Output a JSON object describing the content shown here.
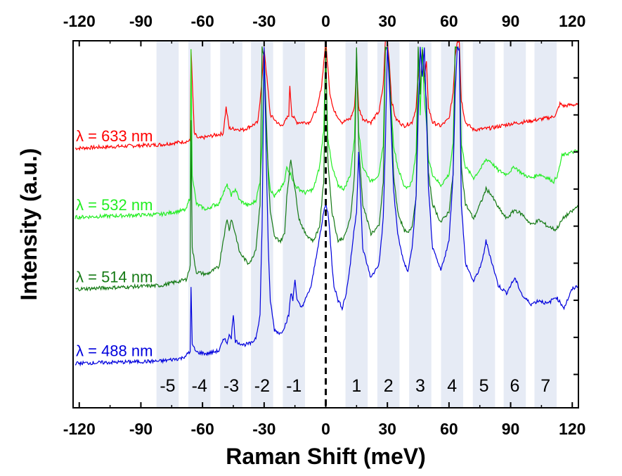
{
  "chart_data": {
    "type": "line",
    "xlabel": "Raman Shift (meV)",
    "ylabel": "Intensity (a.u.)",
    "xlim": [
      -123,
      123
    ],
    "xticks": [
      -120,
      -90,
      -60,
      -30,
      0,
      30,
      60,
      90,
      120
    ],
    "top_xticks": [
      -120,
      -90,
      -60,
      -30,
      0,
      30,
      60,
      90,
      120
    ],
    "zero_line": true,
    "shaded_bands": [
      {
        "label": "-5",
        "center": -77
      },
      {
        "label": "-4",
        "center": -61.5
      },
      {
        "label": "-3",
        "center": -46
      },
      {
        "label": "-2",
        "center": -31
      },
      {
        "label": "-1",
        "center": -15.5
      },
      {
        "label": "1",
        "center": 15
      },
      {
        "label": "2",
        "center": 30.5
      },
      {
        "label": "3",
        "center": 46
      },
      {
        "label": "4",
        "center": 61.5
      },
      {
        "label": "5",
        "center": 77
      },
      {
        "label": "6",
        "center": 92
      },
      {
        "label": "7",
        "center": 107
      }
    ],
    "series": [
      {
        "name": "λ = 633 nm",
        "color": "#ff0000",
        "baseline": 2.55,
        "x": [
          -122,
          -80,
          -66,
          -65.6,
          -64,
          -62,
          -50,
          -48.5,
          -47,
          -40,
          -33,
          -31,
          -30,
          -29,
          -27,
          -22,
          -20,
          -18,
          -17.5,
          -16.5,
          -14,
          -8,
          -4,
          -2,
          0,
          2,
          4,
          8,
          12,
          14,
          15,
          16,
          18,
          22,
          26,
          28,
          29,
          30,
          31,
          32,
          34,
          38,
          42,
          44,
          45,
          46,
          47,
          48,
          49,
          50,
          52,
          56,
          60,
          62,
          63,
          64,
          65,
          66,
          68,
          72,
          80,
          90,
          100,
          110,
          112,
          114,
          116,
          120,
          123
        ],
        "y": [
          2.55,
          2.6,
          2.65,
          3.9,
          2.75,
          2.68,
          2.75,
          3.1,
          2.82,
          2.8,
          2.9,
          3.5,
          3.9,
          3.6,
          3.0,
          2.85,
          2.9,
          3.0,
          3.4,
          3.0,
          2.9,
          2.9,
          3.1,
          3.4,
          4.0,
          3.3,
          3.05,
          2.9,
          2.95,
          3.1,
          3.7,
          3.1,
          2.95,
          2.9,
          3.05,
          3.4,
          4.0,
          4.0,
          3.7,
          3.2,
          2.95,
          2.85,
          2.9,
          3.1,
          3.6,
          3.3,
          3.9,
          3.5,
          3.7,
          3.1,
          2.9,
          2.85,
          2.95,
          3.3,
          3.8,
          4.0,
          4.0,
          3.2,
          2.9,
          2.8,
          2.82,
          2.88,
          2.92,
          2.97,
          3.0,
          3.15,
          3.12,
          3.14,
          3.13
        ]
      },
      {
        "name": "λ = 532 nm",
        "color": "#22ee22",
        "baseline": 1.62,
        "x": [
          -122,
          -80,
          -68,
          -66,
          -65.6,
          -65,
          -63,
          -58,
          -55,
          -52,
          -50,
          -48,
          -46,
          -44,
          -42,
          -38,
          -36,
          -34,
          -32,
          -31,
          -30,
          -29,
          -28,
          -27,
          -25,
          -22,
          -20,
          -19,
          -17,
          -15,
          -13,
          -10,
          -6,
          -3,
          -1,
          0,
          1,
          3,
          6,
          9,
          12,
          14,
          15,
          16,
          18,
          22,
          26,
          28,
          29,
          30,
          31,
          33,
          35,
          38,
          40,
          42,
          44,
          45,
          46,
          47,
          48,
          49,
          50,
          52,
          56,
          60,
          62,
          63,
          64,
          65,
          66,
          68,
          72,
          76,
          78,
          80,
          84,
          88,
          92,
          96,
          100,
          104,
          108,
          111,
          113,
          115,
          118,
          123
        ],
        "y": [
          1.62,
          1.66,
          1.72,
          1.9,
          3.9,
          2.2,
          1.8,
          1.72,
          1.78,
          1.8,
          1.95,
          2.05,
          1.92,
          2.0,
          1.85,
          1.78,
          1.8,
          1.85,
          2.1,
          2.6,
          3.9,
          2.8,
          2.3,
          2.0,
          1.9,
          2.0,
          2.1,
          2.3,
          2.2,
          2.05,
          2.0,
          1.95,
          2.0,
          2.3,
          2.8,
          3.9,
          2.7,
          2.3,
          2.05,
          2.0,
          2.2,
          2.7,
          3.9,
          2.8,
          2.3,
          2.1,
          2.2,
          2.6,
          3.9,
          3.9,
          3.5,
          2.6,
          2.3,
          2.05,
          2.02,
          2.1,
          2.5,
          3.9,
          3.0,
          3.9,
          3.2,
          2.9,
          2.4,
          2.2,
          2.05,
          2.2,
          2.6,
          3.9,
          3.9,
          3.9,
          2.6,
          2.3,
          2.15,
          2.3,
          2.4,
          2.38,
          2.25,
          2.2,
          2.3,
          2.2,
          2.15,
          2.2,
          2.15,
          2.1,
          2.2,
          2.45,
          2.48,
          2.52
        ]
      },
      {
        "name": "λ = 514 nm",
        "color": "#157a15",
        "baseline": 0.65,
        "x": [
          -122,
          -80,
          -68,
          -66,
          -65.6,
          -65,
          -63,
          -58,
          -55,
          -52,
          -50,
          -48,
          -47,
          -46,
          -44,
          -42,
          -38,
          -36,
          -34,
          -32,
          -31,
          -30,
          -29,
          -28,
          -27,
          -25,
          -22,
          -20,
          -19,
          -17,
          -15,
          -13,
          -10,
          -6,
          -3,
          -1,
          0,
          1,
          3,
          6,
          9,
          12,
          14,
          15,
          16,
          18,
          22,
          26,
          28,
          29,
          30,
          31,
          33,
          35,
          38,
          40,
          42,
          44,
          45,
          46,
          47,
          48,
          49,
          50,
          52,
          56,
          60,
          62,
          63,
          64,
          65,
          66,
          68,
          72,
          76,
          78,
          80,
          84,
          88,
          92,
          96,
          100,
          104,
          108,
          112,
          116,
          120,
          123
        ],
        "y": [
          0.65,
          0.7,
          0.78,
          0.95,
          2.95,
          1.2,
          0.88,
          0.85,
          0.9,
          0.95,
          1.3,
          1.6,
          1.45,
          1.6,
          1.4,
          1.15,
          1.0,
          1.05,
          1.2,
          1.8,
          3.9,
          3.8,
          3.0,
          2.2,
          1.7,
          1.35,
          1.3,
          1.4,
          1.9,
          2.4,
          2.0,
          1.6,
          1.4,
          1.3,
          1.5,
          2.1,
          3.9,
          2.4,
          1.7,
          1.3,
          1.35,
          1.6,
          2.2,
          3.9,
          2.6,
          1.8,
          1.4,
          1.5,
          2.1,
          3.9,
          3.9,
          3.6,
          2.2,
          1.7,
          1.45,
          1.4,
          1.5,
          1.9,
          3.9,
          3.3,
          3.9,
          3.5,
          3.2,
          2.2,
          1.8,
          1.55,
          1.7,
          2.2,
          3.9,
          3.9,
          3.9,
          2.3,
          1.8,
          1.6,
          1.85,
          2.0,
          1.95,
          1.75,
          1.6,
          1.72,
          1.65,
          1.52,
          1.58,
          1.5,
          1.45,
          1.62,
          1.7,
          1.78
        ]
      },
      {
        "name": "λ = 488 nm",
        "color": "#0000dd",
        "baseline": -0.35,
        "x": [
          -122,
          -80,
          -70,
          -66,
          -65.6,
          -65,
          -63,
          -58,
          -52,
          -50,
          -49,
          -48,
          -47,
          -46,
          -45,
          -44,
          -40,
          -36,
          -34,
          -32,
          -31,
          -30,
          -29,
          -28,
          -27,
          -25,
          -22,
          -20,
          -18,
          -17,
          -16,
          -15,
          -14,
          -12,
          -10,
          -7,
          -4,
          -2,
          -1,
          0,
          1,
          2,
          3,
          4,
          6,
          8,
          10,
          12,
          14,
          15,
          16,
          18,
          22,
          26,
          28,
          29,
          30,
          31,
          33,
          35,
          38,
          40,
          42,
          44,
          45,
          46,
          47,
          48,
          49,
          50,
          52,
          56,
          60,
          62,
          63,
          64,
          65,
          66,
          68,
          72,
          76,
          78,
          80,
          84,
          88,
          92,
          96,
          100,
          104,
          108,
          112,
          116,
          120,
          123
        ],
        "y": [
          -0.35,
          -0.32,
          -0.28,
          -0.2,
          0.7,
          -0.1,
          -0.2,
          -0.22,
          -0.18,
          -0.05,
          0.0,
          -0.1,
          0.05,
          0.0,
          0.3,
          -0.05,
          -0.1,
          -0.08,
          0.0,
          0.3,
          1.5,
          3.9,
          2.5,
          1.2,
          0.5,
          0.1,
          0.05,
          0.15,
          0.3,
          0.6,
          0.5,
          0.8,
          0.5,
          0.4,
          0.5,
          0.7,
          1.2,
          1.5,
          1.7,
          1.8,
          1.7,
          1.4,
          1.0,
          0.7,
          0.5,
          0.4,
          0.6,
          1.0,
          1.5,
          1.7,
          2.5,
          1.2,
          0.8,
          1.0,
          1.6,
          2.6,
          3.9,
          3.4,
          2.0,
          1.4,
          1.0,
          0.9,
          1.2,
          1.9,
          3.0,
          3.9,
          3.5,
          3.9,
          3.0,
          2.0,
          1.2,
          0.9,
          1.3,
          2.2,
          3.3,
          3.9,
          3.9,
          1.8,
          1.0,
          0.75,
          1.0,
          1.3,
          1.1,
          0.7,
          0.6,
          0.8,
          0.55,
          0.45,
          0.5,
          0.45,
          0.55,
          0.4,
          0.65,
          0.7
        ]
      }
    ]
  }
}
